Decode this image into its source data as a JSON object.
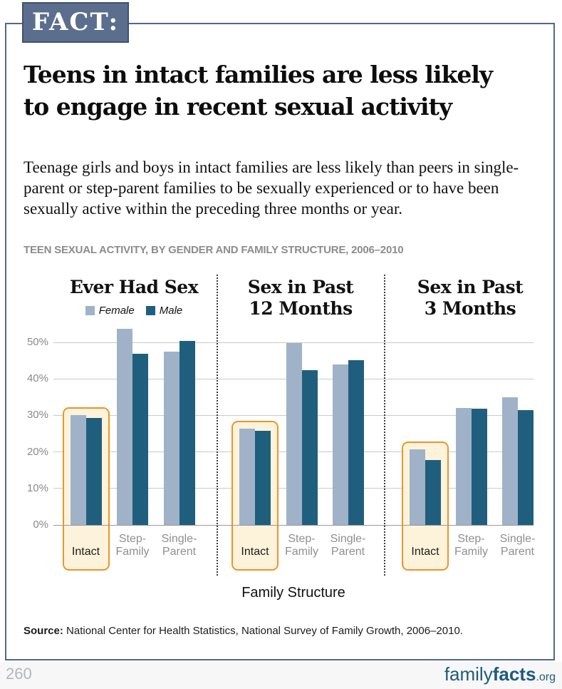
{
  "fact_label": "FACT:",
  "headline": "Teens in intact families are less likely to engage in recent sexual activity",
  "intro": "Teenage girls and boys in intact families are less likely than peers in single-parent or step-parent families to be sexually experienced or to have been sexually active within the preceding three months or year.",
  "chart_title": "TEEN SEXUAL ACTIVITY, BY GENDER AND FAMILY STRUCTURE, 2006–2010",
  "x_axis_label": "Family Structure",
  "source_label": "Source:",
  "source_text": " National Center for Health Statistics, National Survey of Family Growth, 2006–2010.",
  "footer": {
    "page_number": "260",
    "logo_family": "family",
    "logo_facts": "facts",
    "logo_org": ".org"
  },
  "colors": {
    "female_bar": "#9fb2c8",
    "male_bar": "#1f5f7d",
    "highlight_border": "#e9962c",
    "highlight_fill": "#fdf3da",
    "badge_bg": "#5b6e8e",
    "frame_border": "#52678e",
    "logo": "#1d5b7c"
  },
  "chart_data": {
    "type": "bar",
    "title": "TEEN SEXUAL ACTIVITY, BY GENDER AND FAMILY STRUCTURE, 2006–2010",
    "xlabel": "Family Structure",
    "ylabel": "",
    "ylim": [
      0,
      50
    ],
    "grid": true,
    "legend_position": "top-left-panel",
    "yticks": [
      "0%",
      "10%",
      "20%",
      "30%",
      "40%",
      "50%"
    ],
    "legend": {
      "female": "Female",
      "male": "Male"
    },
    "panels": [
      {
        "title_lines": [
          "Ever Had Sex"
        ],
        "categories": [
          [
            "Intact"
          ],
          [
            "Step-",
            "Family"
          ],
          [
            "Single-",
            "Parent"
          ]
        ],
        "highlighted_category": "Intact",
        "series": [
          {
            "name": "Female",
            "values": [
              30.0,
              53.7,
              47.5
            ]
          },
          {
            "name": "Male",
            "values": [
              29.3,
              46.9,
              50.3
            ]
          }
        ]
      },
      {
        "title_lines": [
          "Sex in Past",
          "12 Months"
        ],
        "categories": [
          [
            "Intact"
          ],
          [
            "Step-",
            "Family"
          ],
          [
            "Single-",
            "Parent"
          ]
        ],
        "highlighted_category": "Intact",
        "series": [
          {
            "name": "Female",
            "values": [
              26.4,
              49.8,
              44.0
            ]
          },
          {
            "name": "Male",
            "values": [
              25.7,
              42.3,
              45.1
            ]
          }
        ]
      },
      {
        "title_lines": [
          "Sex in Past",
          "3 Months"
        ],
        "categories": [
          [
            "Intact"
          ],
          [
            "Step-",
            "Family"
          ],
          [
            "Single-",
            "Parent"
          ]
        ],
        "highlighted_category": "Intact",
        "series": [
          {
            "name": "Female",
            "values": [
              20.8,
              32.0,
              35.0
            ]
          },
          {
            "name": "Male",
            "values": [
              17.8,
              31.8,
              31.5
            ]
          }
        ]
      }
    ]
  }
}
